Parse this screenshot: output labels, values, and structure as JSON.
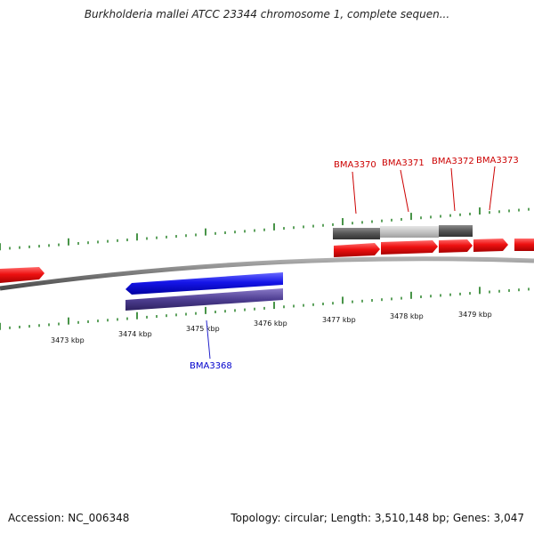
{
  "title": "Burkholderia mallei ATCC 23344 chromosome 1, complete sequen...",
  "footer": {
    "accession": "Accession: NC_006348",
    "summary": "Topology: circular; Length: 3,510,148 bp; Genes: 3,047"
  },
  "map": {
    "axis_labels": [
      "3473 kbp",
      "3474 kbp",
      "3475 kbp",
      "3476 kbp",
      "3477 kbp",
      "3478 kbp",
      "3479 kbp"
    ],
    "genes": [
      {
        "name": "BMA3368",
        "color": "#0000cc"
      },
      {
        "name": "BMA3370",
        "color": "#cc0000"
      },
      {
        "name": "BMA3371",
        "color": "#cc0000"
      },
      {
        "name": "BMA3372",
        "color": "#cc0000"
      },
      {
        "name": "BMA3373",
        "color": "#cc0000"
      }
    ],
    "colors": {
      "backbone": "#808080",
      "ticks": "#1a7a1a",
      "forward_gene": "#e8101a",
      "reverse_gene": "#1a1ae0",
      "reverse_shadow": "#4a3a8a",
      "gc_dark": "#555555",
      "gc_light": "#c4c4c4"
    }
  }
}
